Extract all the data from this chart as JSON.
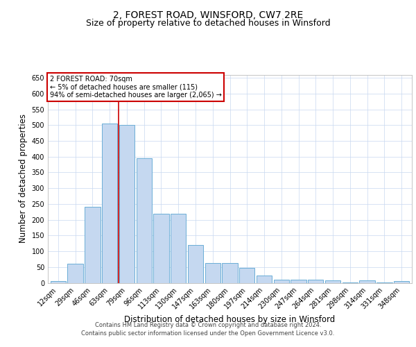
{
  "title_line1": "2, FOREST ROAD, WINSFORD, CW7 2RE",
  "title_line2": "Size of property relative to detached houses in Winsford",
  "xlabel": "Distribution of detached houses by size in Winsford",
  "ylabel": "Number of detached properties",
  "categories": [
    "12sqm",
    "29sqm",
    "46sqm",
    "63sqm",
    "79sqm",
    "96sqm",
    "113sqm",
    "130sqm",
    "147sqm",
    "163sqm",
    "180sqm",
    "197sqm",
    "214sqm",
    "230sqm",
    "247sqm",
    "264sqm",
    "281sqm",
    "298sqm",
    "314sqm",
    "331sqm",
    "348sqm"
  ],
  "values": [
    5,
    60,
    240,
    505,
    500,
    395,
    220,
    220,
    120,
    62,
    62,
    47,
    24,
    10,
    9,
    10,
    7,
    2,
    7,
    1,
    6
  ],
  "bar_color": "#c5d8f0",
  "bar_edge_color": "#6baed6",
  "annotation_text_line1": "2 FOREST ROAD: 70sqm",
  "annotation_text_line2": "← 5% of detached houses are smaller (115)",
  "annotation_text_line3": "94% of semi-detached houses are larger (2,065) →",
  "annotation_box_color": "#ffffff",
  "annotation_box_edge": "#cc0000",
  "vline_color": "#cc0000",
  "footer_line1": "Contains HM Land Registry data © Crown copyright and database right 2024.",
  "footer_line2": "Contains public sector information licensed under the Open Government Licence v3.0.",
  "ylim": [
    0,
    660
  ],
  "yticks": [
    0,
    50,
    100,
    150,
    200,
    250,
    300,
    350,
    400,
    450,
    500,
    550,
    600,
    650
  ],
  "bg_color": "#ffffff",
  "grid_color": "#c8d8f0",
  "title_fontsize": 10,
  "subtitle_fontsize": 9,
  "axis_label_fontsize": 8.5,
  "tick_fontsize": 7,
  "annot_fontsize": 7,
  "bar_width": 0.9
}
